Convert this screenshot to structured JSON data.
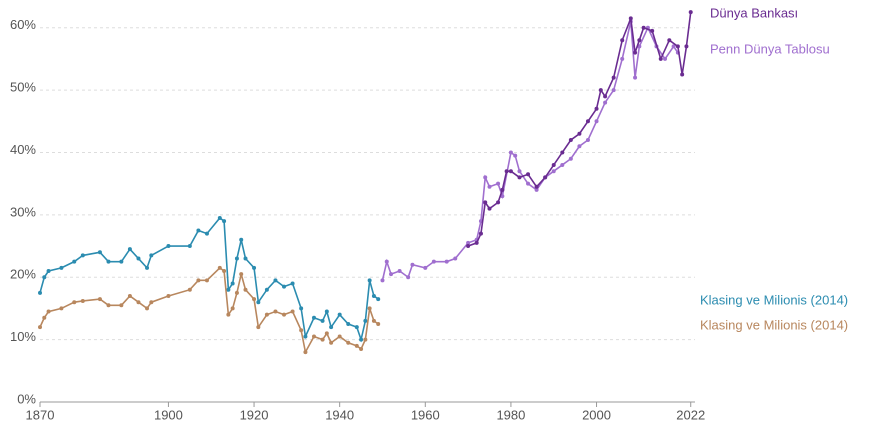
{
  "chart_data": {
    "type": "line",
    "xlim": [
      1870,
      2023
    ],
    "xticks": [
      1870,
      1900,
      1920,
      1940,
      1960,
      1980,
      2000,
      2022
    ],
    "ylim": [
      0,
      63
    ],
    "yticks": [
      {
        "value": 0,
        "label": "0%"
      },
      {
        "value": 10,
        "label": "10%"
      },
      {
        "value": 20,
        "label": "20%"
      },
      {
        "value": 30,
        "label": "30%"
      },
      {
        "value": 40,
        "label": "40%"
      },
      {
        "value": 50,
        "label": "50%"
      },
      {
        "value": 60,
        "label": "60%"
      }
    ],
    "grid": true,
    "series": [
      {
        "name": "Klasing ve Milionis (2014)",
        "color": "#2b8cb0",
        "x": [
          1870,
          1871,
          1872,
          1875,
          1878,
          1880,
          1884,
          1886,
          1889,
          1891,
          1893,
          1895,
          1896,
          1900,
          1905,
          1907,
          1909,
          1912,
          1913,
          1914,
          1915,
          1916,
          1917,
          1918,
          1920,
          1921,
          1923,
          1925,
          1927,
          1929,
          1931,
          1932,
          1934,
          1936,
          1937,
          1938,
          1940,
          1942,
          1944,
          1945,
          1946,
          1947,
          1948,
          1949
        ],
        "values": [
          17.5,
          20,
          21,
          21.5,
          22.5,
          23.5,
          24,
          22.5,
          22.5,
          24.5,
          23,
          21.5,
          23.5,
          25,
          25,
          27.5,
          27,
          29.5,
          29,
          18,
          19,
          23,
          26,
          23,
          21.5,
          16,
          18,
          19.5,
          18.5,
          19,
          15,
          10.5,
          13.5,
          13,
          14.5,
          12,
          14,
          12.5,
          12,
          10,
          13,
          19.5,
          17,
          16.5
        ]
      },
      {
        "name": "Klasing ve Milionis (2014)",
        "color": "#b8875e",
        "x": [
          1870,
          1871,
          1872,
          1875,
          1878,
          1880,
          1884,
          1886,
          1889,
          1891,
          1893,
          1895,
          1896,
          1900,
          1905,
          1907,
          1909,
          1912,
          1913,
          1914,
          1915,
          1916,
          1917,
          1918,
          1920,
          1921,
          1923,
          1925,
          1927,
          1929,
          1931,
          1932,
          1934,
          1936,
          1937,
          1938,
          1940,
          1942,
          1944,
          1945,
          1946,
          1947,
          1948,
          1949
        ],
        "values": [
          12,
          13.5,
          14.5,
          15,
          16,
          16.2,
          16.5,
          15.5,
          15.5,
          17,
          16,
          15,
          16,
          17,
          18,
          19.5,
          19.5,
          21.5,
          21,
          14,
          15,
          17.5,
          20.5,
          18,
          16.5,
          12,
          14,
          14.5,
          14,
          14.5,
          11.5,
          8,
          10.5,
          10,
          11,
          9.5,
          10.5,
          9.5,
          9,
          8.5,
          10,
          15,
          13,
          12.5
        ]
      },
      {
        "name": "Penn Dünya Tablosu",
        "color": "#a06fcf",
        "x": [
          1950,
          1951,
          1952,
          1954,
          1956,
          1957,
          1960,
          1962,
          1965,
          1967,
          1970,
          1972,
          1973,
          1974,
          1975,
          1977,
          1978,
          1980,
          1981,
          1982,
          1984,
          1986,
          1988,
          1990,
          1992,
          1994,
          1996,
          1998,
          2000,
          2002,
          2004,
          2006,
          2008,
          2009,
          2010,
          2012,
          2014,
          2016,
          2018,
          2019
        ],
        "values": [
          19.5,
          22.5,
          20.5,
          21,
          20,
          22,
          21.5,
          22.5,
          22.5,
          23,
          25.5,
          26,
          29,
          36,
          34.5,
          35,
          33,
          40,
          39.5,
          37,
          35,
          34,
          36,
          37,
          38,
          39,
          41,
          42,
          45,
          48,
          50,
          55,
          61,
          52,
          57,
          60,
          57,
          55,
          57,
          56
        ]
      },
      {
        "name": "Dünya Bankası",
        "color": "#6a2c91",
        "x": [
          1970,
          1972,
          1973,
          1974,
          1975,
          1977,
          1978,
          1979,
          1980,
          1982,
          1984,
          1986,
          1988,
          1990,
          1992,
          1994,
          1996,
          1998,
          2000,
          2001,
          2002,
          2004,
          2006,
          2008,
          2009,
          2010,
          2011,
          2013,
          2015,
          2017,
          2019,
          2020,
          2021,
          2022
        ],
        "values": [
          25,
          25.5,
          27,
          32,
          31,
          32,
          34,
          37,
          37,
          36,
          36.5,
          34.5,
          36,
          38,
          40,
          42,
          43,
          45,
          47,
          50,
          49,
          52,
          58,
          61.5,
          56,
          58,
          60,
          59.5,
          55,
          58,
          57,
          52.5,
          57,
          62.5
        ]
      }
    ]
  }
}
